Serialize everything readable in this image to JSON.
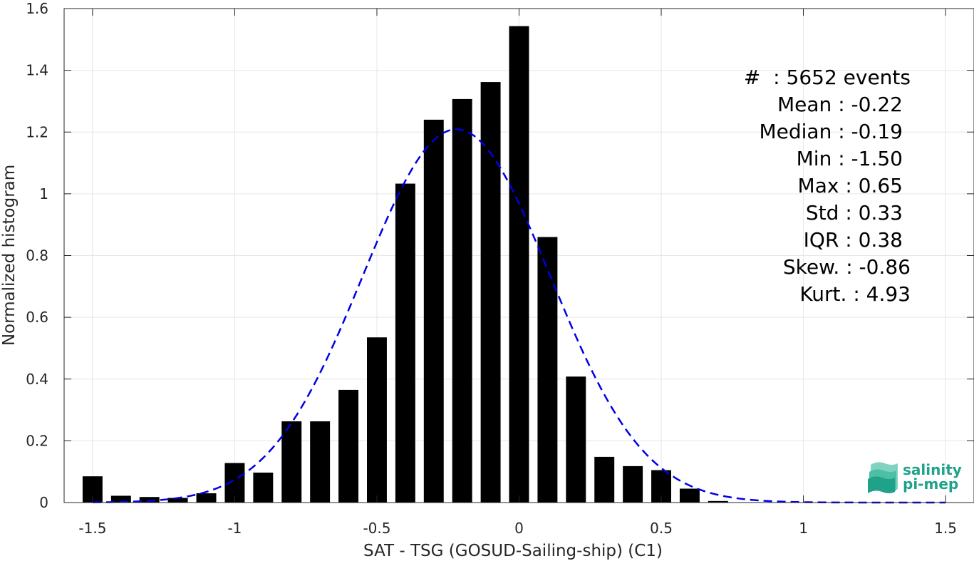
{
  "chart_data": {
    "type": "bar",
    "xlabel": "SAT - TSG (GOSUD-Sailing-ship) (C1)",
    "ylabel": "Normalized histogram",
    "xlim": [
      -1.6,
      1.6
    ],
    "ylim": [
      0,
      1.6
    ],
    "grid": true,
    "x_ticks": [
      "-1.5",
      "-1",
      "-0.5",
      "0",
      "0.5",
      "1",
      "1.5"
    ],
    "y_ticks": [
      "0",
      "0.2",
      "0.4",
      "0.6",
      "0.8",
      "1",
      "1.2",
      "1.4",
      "1.6"
    ],
    "bin_width": 0.1,
    "bars": {
      "centers": [
        -1.5,
        -1.4,
        -1.3,
        -1.2,
        -1.1,
        -1.0,
        -0.9,
        -0.8,
        -0.7,
        -0.6,
        -0.5,
        -0.4,
        -0.3,
        -0.2,
        -0.1,
        0.0,
        0.1,
        0.2,
        0.3,
        0.4,
        0.5,
        0.6,
        0.7
      ],
      "values": [
        0.085,
        0.022,
        0.018,
        0.015,
        0.03,
        0.128,
        0.097,
        0.263,
        0.263,
        0.365,
        0.535,
        1.033,
        1.24,
        1.307,
        1.362,
        1.543,
        0.86,
        0.408,
        0.148,
        0.118,
        0.105,
        0.045,
        0.005
      ],
      "color": "#000000"
    },
    "fit_curve": {
      "style": "dashed",
      "color": "#0000e6",
      "mean": -0.22,
      "std": 0.33,
      "x_range": [
        -1.5,
        1.5
      ]
    },
    "annotations": [
      {
        "label": "#  : 5652 events"
      },
      {
        "label": "Mean : -0.22"
      },
      {
        "label": "Median : -0.19"
      },
      {
        "label": "Min : -1.50"
      },
      {
        "label": "Max : 0.65"
      },
      {
        "label": "Std : 0.33"
      },
      {
        "label": "IQR : 0.38"
      },
      {
        "label": "Skew. : -0.86"
      },
      {
        "label": "Kurt. : 4.93"
      }
    ]
  },
  "logo": {
    "line1": "salinity",
    "line2": "pi-mep",
    "color": "#1fa28a"
  }
}
